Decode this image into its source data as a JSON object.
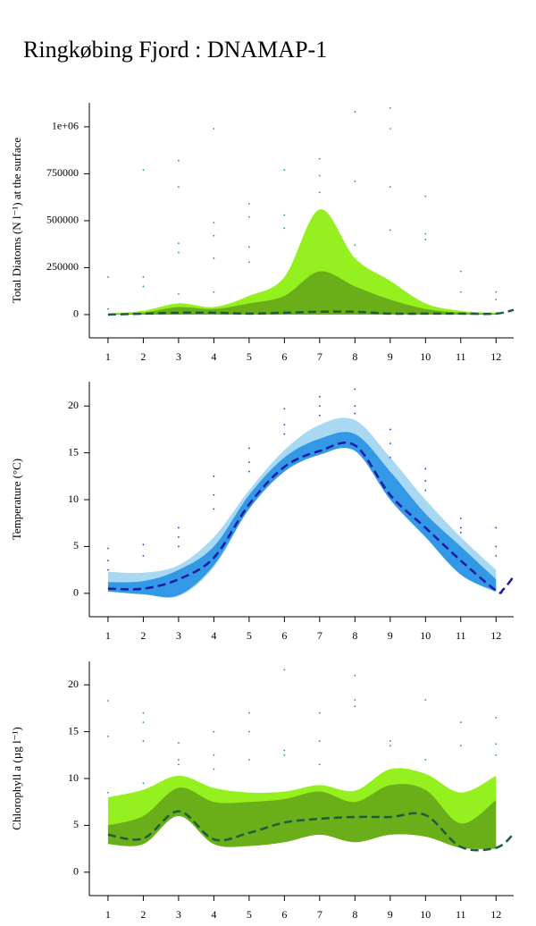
{
  "title": "Ringkøbing Fjord : DNAMAP-1",
  "chart_data": [
    {
      "type": "band",
      "ylabel": "Total Diatoms (N l⁻¹) at the surface",
      "xlim": [
        0.47,
        12.5
      ],
      "xticks": [
        1,
        2,
        3,
        4,
        5,
        6,
        7,
        8,
        9,
        10,
        11,
        12
      ],
      "ylim": [
        -124000,
        1128000
      ],
      "yticks": [
        0,
        250000,
        500000,
        750000,
        {
          "value": 1000000,
          "label": "1e+06"
        }
      ],
      "x": [
        1,
        2,
        3,
        4,
        5,
        6,
        7,
        8,
        9,
        10,
        11,
        12
      ],
      "outer": {
        "color": "#94f01e",
        "upper": [
          5000,
          20000,
          60000,
          40000,
          100000,
          200000,
          560000,
          300000,
          180000,
          60000,
          20000,
          10000
        ],
        "lower": [
          0,
          0,
          0,
          0,
          0,
          0,
          0,
          0,
          0,
          0,
          0,
          0
        ]
      },
      "inner": {
        "color": "#6aae1a",
        "upper": [
          3000,
          10000,
          40000,
          30000,
          60000,
          100000,
          230000,
          150000,
          80000,
          30000,
          10000,
          5000
        ],
        "lower": [
          0,
          0,
          0,
          0,
          0,
          0,
          0,
          0,
          0,
          0,
          0,
          0
        ]
      },
      "median": {
        "color": "#1a5e3a",
        "x": [
          1,
          2,
          3,
          4,
          5,
          6,
          7,
          8,
          9,
          10,
          11,
          12,
          12.5
        ],
        "values": [
          0,
          5000,
          10000,
          10000,
          5000,
          10000,
          15000,
          15000,
          5000,
          5000,
          5000,
          5000,
          25000
        ]
      },
      "points": {
        "color": "#2a8f8f",
        "x": [
          1,
          1,
          2,
          2,
          2,
          3,
          3,
          3,
          3,
          3,
          4,
          4,
          4,
          4,
          4,
          5,
          5,
          5,
          5,
          6,
          6,
          6,
          7,
          7,
          7,
          8,
          8,
          8,
          9,
          9,
          9,
          9,
          10,
          10,
          10,
          11,
          11,
          12,
          12
        ],
        "y": [
          200000,
          30000,
          770000,
          200000,
          150000,
          820000,
          680000,
          380000,
          330000,
          110000,
          990000,
          490000,
          420000,
          300000,
          120000,
          590000,
          520000,
          360000,
          280000,
          770000,
          530000,
          460000,
          830000,
          740000,
          650000,
          1080000,
          710000,
          370000,
          1100000,
          990000,
          680000,
          450000,
          630000,
          430000,
          400000,
          230000,
          120000,
          120000,
          80000
        ]
      }
    },
    {
      "type": "band",
      "ylabel": "Temperature (°C)",
      "xlim": [
        0.47,
        12.5
      ],
      "xticks": [
        1,
        2,
        3,
        4,
        5,
        6,
        7,
        8,
        9,
        10,
        11,
        12
      ],
      "ylim": [
        -2.5,
        22.6
      ],
      "yticks": [
        0,
        5,
        10,
        15,
        20
      ],
      "x": [
        1,
        2,
        3,
        4,
        5,
        6,
        7,
        8,
        9,
        10,
        11,
        12
      ],
      "outer": {
        "color": "#a8d8f2",
        "upper": [
          2.3,
          2.2,
          3,
          6,
          11,
          15.3,
          18,
          18.5,
          14.5,
          10,
          6,
          2.5
        ],
        "lower": [
          0.2,
          -0.1,
          -0.3,
          2.8,
          9,
          13,
          14.8,
          15.2,
          10,
          6,
          2,
          0.1
        ]
      },
      "inner": {
        "color": "#3399e6",
        "upper": [
          1.2,
          1.3,
          2.5,
          5,
          10.5,
          14.5,
          16.5,
          17,
          13,
          8.5,
          5,
          1.5
        ],
        "lower": [
          0.2,
          -0.1,
          -0.2,
          3,
          9,
          13,
          14.8,
          15.2,
          10,
          6,
          2,
          0.2
        ]
      },
      "median": {
        "color": "#1a1aa0",
        "x": [
          1,
          2,
          3,
          4,
          5,
          6,
          7,
          8,
          9,
          10,
          11,
          12,
          12.2,
          12.5
        ],
        "values": [
          0.5,
          0.5,
          1.5,
          3.8,
          9.5,
          13.5,
          15.2,
          15.8,
          10.5,
          7,
          3.5,
          0.3,
          0.4,
          1.8
        ]
      },
      "points": {
        "color": "#3333cc",
        "x": [
          1,
          1,
          1,
          2,
          2,
          3,
          3,
          3,
          4,
          4,
          4,
          5,
          5,
          5,
          6,
          6,
          6,
          7,
          7,
          7,
          8,
          8,
          8,
          9,
          9,
          9,
          10,
          10,
          10,
          11,
          11,
          11,
          12,
          12,
          12
        ],
        "y": [
          4.8,
          3.5,
          2.5,
          5.2,
          4,
          7,
          6,
          5,
          12.5,
          10.5,
          9,
          15.5,
          14,
          13,
          19.7,
          18,
          17,
          21,
          20,
          19,
          21.8,
          20,
          19.2,
          17.5,
          16,
          14.5,
          13.3,
          12,
          11,
          8,
          7,
          6.5,
          7,
          5,
          4
        ]
      }
    },
    {
      "type": "band",
      "ylabel": "Chlorophyll a (µg l⁻¹)",
      "xlim": [
        0.47,
        12.5
      ],
      "xticks": [
        1,
        2,
        3,
        4,
        5,
        6,
        7,
        8,
        9,
        10,
        11,
        12
      ],
      "ylim": [
        -2.5,
        22.5
      ],
      "yticks": [
        0,
        5,
        10,
        15,
        20
      ],
      "x": [
        1,
        2,
        3,
        4,
        5,
        6,
        7,
        8,
        9,
        10,
        11,
        12
      ],
      "outer": {
        "color": "#94f01e",
        "upper": [
          8,
          8.8,
          10.3,
          9,
          8.5,
          8.6,
          9.3,
          8.7,
          11,
          10.5,
          8.5,
          10.3
        ],
        "lower": [
          3,
          3,
          6,
          3,
          2.8,
          3.2,
          4,
          3.2,
          4,
          3.8,
          2.6,
          2.5
        ]
      },
      "inner": {
        "color": "#6aae1a",
        "upper": [
          5,
          6,
          9,
          7.5,
          7.5,
          7.8,
          8.6,
          7.5,
          9.3,
          8.8,
          5.2,
          7.7
        ],
        "lower": [
          3,
          3,
          6,
          3,
          2.8,
          3.2,
          4,
          3.2,
          4,
          3.8,
          2.6,
          2.5
        ]
      },
      "median": {
        "color": "#1a5e3a",
        "x": [
          1,
          2,
          3,
          4,
          5,
          6,
          7,
          8,
          9,
          10,
          11,
          12,
          12.5
        ],
        "values": [
          4,
          3.6,
          6.5,
          3.5,
          4.2,
          5.3,
          5.7,
          5.9,
          5.9,
          6.1,
          2.7,
          2.6,
          4.1
        ]
      },
      "points": {
        "color": "#2a8f8f",
        "x": [
          1,
          1,
          1,
          2,
          2,
          2,
          2,
          3,
          3,
          3,
          4,
          4,
          4,
          5,
          5,
          5,
          6,
          6,
          6,
          7,
          7,
          7,
          8,
          8,
          8,
          9,
          9,
          10,
          10,
          11,
          11,
          12,
          12,
          12
        ],
        "y": [
          18.3,
          14.5,
          8.5,
          17,
          16,
          14,
          9.5,
          13.8,
          12,
          11.5,
          15,
          12.5,
          11,
          17,
          15,
          12,
          21.6,
          13,
          12.5,
          17,
          14,
          11.5,
          21,
          18.4,
          17.7,
          14,
          13.5,
          18.4,
          12,
          16,
          13.5,
          16.5,
          13.7,
          12.5
        ]
      }
    }
  ]
}
